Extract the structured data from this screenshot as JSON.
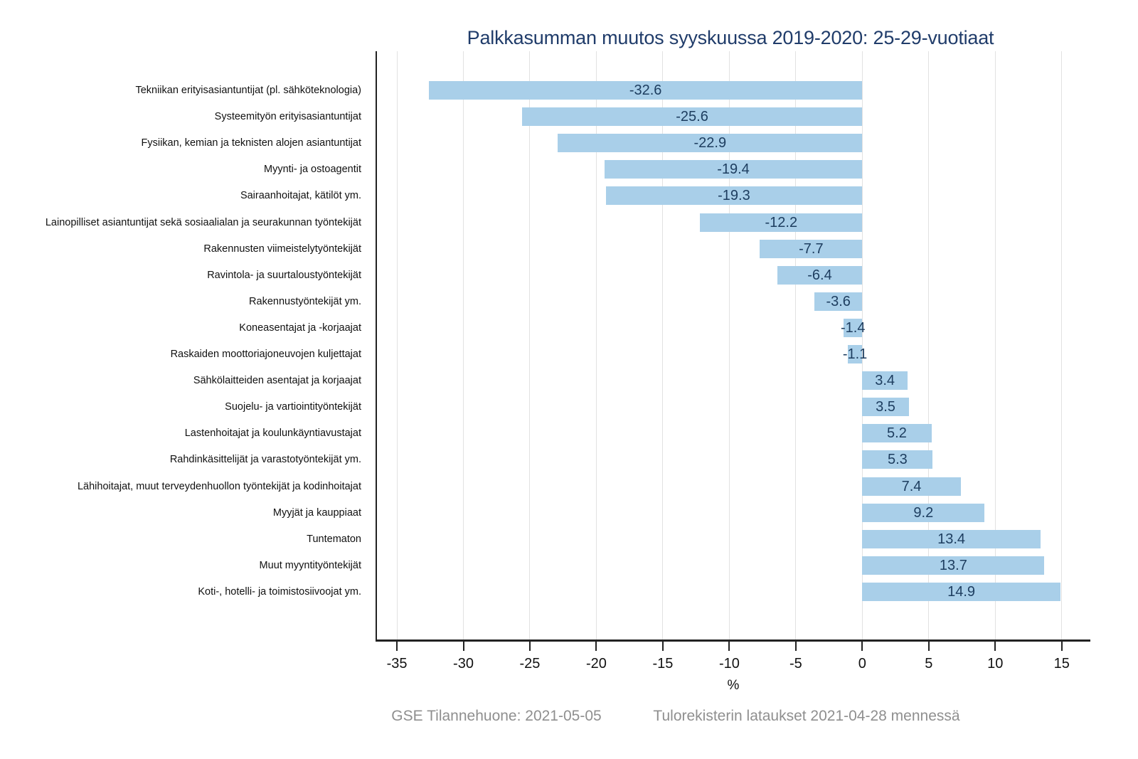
{
  "title": "Palkkasumman muutos syyskuussa 2019-2020: 25-29-vuotiaat",
  "footer": {
    "left_note": "GSE Tilannehuone: 2021-05-05",
    "right_note": "Tulorekisterin lataukset 2021-04-28 mennessä"
  },
  "chart_data": {
    "type": "bar",
    "orientation": "horizontal",
    "title": "Palkkasumman muutos syyskuussa 2019-2020: 25-29-vuotiaat",
    "xlabel": "%",
    "ylabel": "",
    "categories": [
      "Tekniikan erityisasiantuntijat (pl. sähköteknologia)",
      "Systeemityön erityisasiantuntijat",
      "Fysiikan, kemian ja teknisten alojen asiantuntijat",
      "Myynti- ja ostoagentit",
      "Sairaanhoitajat, kätilöt ym.",
      "Lainopilliset asiantuntijat sekä sosiaalialan ja seurakunnan työntekijät",
      "Rakennusten viimeistelytyöntekijät",
      "Ravintola- ja suurtaloustyöntekijät",
      "Rakennustyöntekijät ym.",
      "Koneasentajat ja -korjaajat",
      "Raskaiden moottoriajoneuvojen kuljettajat",
      "Sähkölaitteiden asentajat ja korjaajat",
      "Suojelu- ja vartiointityöntekijät",
      "Lastenhoitajat ja koulunkäyntiavustajat",
      "Rahdinkäsittelijät ja varastotyöntekijät ym.",
      "Lähihoitajat, muut terveydenhuollon työntekijät ja kodinhoitajat",
      "Myyjät ja kauppiaat",
      "Tuntematon",
      "Muut myyntityöntekijät",
      "Koti-, hotelli- ja toimistosiivoojat ym."
    ],
    "values": [
      -32.6,
      -25.6,
      -22.9,
      -19.4,
      -19.3,
      -12.2,
      -7.7,
      -6.4,
      -3.6,
      -1.4,
      -1.1,
      3.4,
      3.5,
      5.2,
      5.3,
      7.4,
      9.2,
      13.4,
      13.7,
      14.9
    ],
    "value_labels": [
      "-32.6",
      "-25.6",
      "-22.9",
      "-19.4",
      "-19.3",
      "-12.2",
      "-7.7",
      "-6.4",
      "-3.6",
      "-1.4",
      "-1.1",
      "3.4",
      "3.5",
      "5.2",
      "5.3",
      "7.4",
      "9.2",
      "13.4",
      "13.7",
      "14.9"
    ],
    "xticks": [
      -35,
      -30,
      -25,
      -20,
      -15,
      -10,
      -5,
      0,
      5,
      10,
      15
    ],
    "xlim": [
      -36.5,
      17.1
    ],
    "grid": true,
    "legend": "none",
    "colors": {
      "bar": "#a9cfe9",
      "value_label": "#1d3d5f",
      "title": "#203c6a",
      "gridline": "#e2e2e2",
      "axis": "#222222",
      "tick_label": "#111111",
      "category_label": "#111111",
      "footer": "#8f8f8f"
    }
  }
}
